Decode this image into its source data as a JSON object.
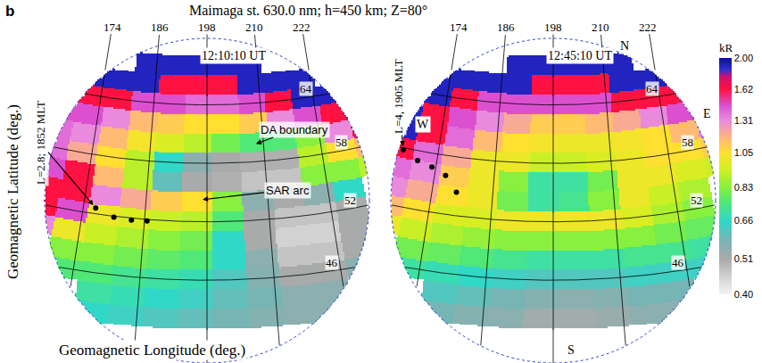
{
  "chart_data": {
    "type": "heatmap",
    "label": "b",
    "title": "Maimaga st. 630.0 nm; h=450 km; Z=80°",
    "y_title": "Geomagnetic Latitude (deg.)",
    "x_title": "Geomagnetic Longitude (deg.)",
    "longitude_ticks": [
      174,
      186,
      198,
      210,
      222
    ],
    "latitude_ticks": [
      64,
      58,
      52,
      46
    ],
    "colorbar": {
      "title": "kR",
      "log": true,
      "range": [
        0.4,
        2
      ],
      "ticks": [
        {
          "value": 0.4,
          "label": "0.40"
        },
        0.51,
        0.66,
        0.83,
        1.05,
        1.31,
        1.62,
        {
          "value": 2,
          "label": "2.00"
        }
      ]
    },
    "cell_lat": [
      42,
      44,
      46,
      48,
      50,
      52,
      54,
      56,
      58,
      60,
      62,
      64,
      66,
      68
    ],
    "cell_lon": [
      166,
      172,
      178,
      184,
      190,
      196,
      202,
      208,
      214,
      220,
      226,
      232
    ],
    "panels": [
      {
        "time": "12:10:10 UT",
        "track_label": "L=2.8; 1852 MLT",
        "track": {
          "lat": [
            52.6,
            51.9,
            51.8,
            51.85
          ],
          "lon": [
            176.4,
            180.1,
            183.5,
            186.5
          ]
        },
        "notes": [
          "DA boundary",
          "SAR arc"
        ],
        "cells": [
          [
            null,
            null,
            0.66,
            0.64,
            0.62,
            0.6,
            0.58,
            0.56,
            0.55,
            0.55,
            null,
            null
          ],
          [
            null,
            null,
            0.7,
            0.68,
            0.66,
            0.64,
            0.6,
            0.58,
            0.55,
            0.55,
            null,
            null
          ],
          [
            null,
            0.75,
            0.75,
            0.72,
            0.7,
            0.68,
            0.62,
            0.56,
            0.51,
            0.51,
            0.55,
            null
          ],
          [
            null,
            0.83,
            0.83,
            0.8,
            0.77,
            0.75,
            0.66,
            0.55,
            0.47,
            0.47,
            0.51,
            null
          ],
          [
            1.31,
            1.0,
            0.92,
            0.88,
            0.83,
            0.8,
            0.66,
            0.51,
            0.45,
            0.45,
            0.51,
            null
          ],
          [
            1.62,
            1.45,
            1.0,
            0.95,
            0.92,
            0.9,
            0.75,
            0.51,
            0.47,
            0.47,
            0.51,
            null
          ],
          [
            1.62,
            1.62,
            1.31,
            1.2,
            1.1,
            1.05,
            0.83,
            0.55,
            0.51,
            0.55,
            0.66,
            null
          ],
          [
            1.45,
            1.62,
            1.15,
            0.9,
            0.6,
            0.51,
            0.5,
            0.47,
            0.47,
            0.83,
            0.83,
            0.9
          ],
          [
            1.38,
            1.2,
            1.05,
            0.9,
            0.66,
            0.55,
            0.51,
            0.5,
            0.5,
            0.9,
            1.05,
            1.15
          ],
          [
            1.38,
            1.31,
            1.15,
            1.02,
            0.95,
            0.9,
            0.8,
            0.75,
            0.75,
            0.83,
            1.31,
            1.62
          ],
          [
            1.45,
            1.45,
            1.31,
            1.15,
            1.1,
            1.05,
            1.05,
            1.1,
            1.31,
            1.45,
            1.62,
            1.9
          ],
          [
            null,
            1.62,
            1.62,
            1.45,
            1.45,
            1.38,
            1.38,
            1.45,
            1.62,
            1.9,
            1.9,
            null
          ],
          [
            null,
            1.9,
            1.9,
            1.9,
            1.62,
            1.62,
            1.62,
            1.9,
            1.9,
            1.9,
            null,
            null
          ],
          [
            null,
            null,
            null,
            1.9,
            1.9,
            1.9,
            1.9,
            1.9,
            null,
            null,
            null,
            null
          ]
        ]
      },
      {
        "time": "12:45:10 UT",
        "track_label": "L=4, 1905 MLT",
        "track": {
          "lat": [
            57.8,
            57.0,
            56.6,
            55.95,
            54.4
          ],
          "lon": [
            166.8,
            170.1,
            173.2,
            176.2,
            178.8
          ]
        },
        "compass": {
          "north": "N",
          "east": "E",
          "south": "S",
          "west": "W"
        },
        "cells": [
          [
            null,
            null,
            0.58,
            0.56,
            0.55,
            0.52,
            0.52,
            0.53,
            0.55,
            0.55,
            null,
            null
          ],
          [
            null,
            null,
            0.62,
            0.6,
            0.58,
            0.56,
            0.55,
            0.56,
            0.58,
            0.58,
            null,
            null
          ],
          [
            null,
            0.7,
            0.68,
            0.66,
            0.64,
            0.62,
            0.62,
            0.62,
            0.64,
            0.64,
            0.64,
            null
          ],
          [
            null,
            0.8,
            0.78,
            0.75,
            0.72,
            0.7,
            0.7,
            0.7,
            0.72,
            0.72,
            0.7,
            null
          ],
          [
            1.0,
            0.92,
            0.88,
            0.85,
            0.83,
            0.83,
            0.83,
            0.83,
            0.83,
            0.8,
            0.78,
            null
          ],
          [
            1.15,
            1.05,
            0.95,
            0.95,
            1.0,
            1.0,
            1.0,
            1.0,
            0.95,
            0.88,
            0.83,
            null
          ],
          [
            1.31,
            1.2,
            1.05,
            1.0,
            0.8,
            0.7,
            0.72,
            0.83,
            1.0,
            0.92,
            0.88,
            null
          ],
          [
            1.38,
            1.31,
            1.1,
            1.0,
            0.83,
            0.7,
            0.7,
            0.8,
            1.0,
            1.0,
            0.95,
            0.92
          ],
          [
            1.62,
            1.38,
            1.2,
            1.0,
            1.0,
            0.92,
            0.92,
            0.95,
            1.0,
            1.05,
            1.05,
            1.1
          ],
          [
            1.9,
            1.62,
            1.38,
            1.15,
            1.05,
            1.02,
            1.0,
            1.0,
            1.02,
            1.05,
            1.15,
            1.31
          ],
          [
            1.9,
            1.62,
            1.45,
            1.31,
            1.2,
            1.1,
            1.1,
            1.15,
            1.2,
            1.31,
            1.45,
            1.62
          ],
          [
            null,
            1.9,
            1.62,
            1.45,
            1.45,
            1.45,
            1.45,
            1.45,
            1.62,
            1.62,
            1.62,
            null
          ],
          [
            null,
            1.9,
            1.9,
            1.9,
            1.9,
            1.62,
            1.62,
            1.62,
            1.9,
            1.9,
            1.9,
            null
          ],
          [
            null,
            null,
            null,
            null,
            1.9,
            1.9,
            1.9,
            1.9,
            1.9,
            null,
            null,
            null
          ]
        ]
      }
    ]
  }
}
